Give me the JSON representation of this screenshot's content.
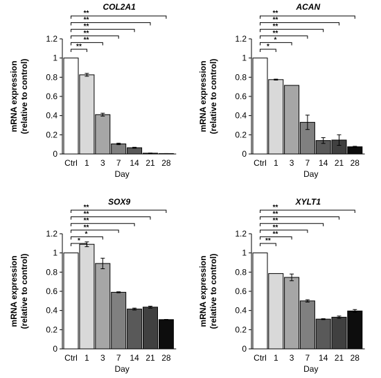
{
  "chart_data": [
    {
      "type": "bar",
      "title": "COL2A1",
      "ylabel": [
        "mRNA expression",
        "(relative to control)"
      ],
      "xlabel": "Day",
      "categories": [
        "Ctrl",
        "1",
        "3",
        "7",
        "14",
        "21",
        "28"
      ],
      "values": [
        1.0,
        0.825,
        0.41,
        0.105,
        0.065,
        0.008,
        0.003
      ],
      "errors": [
        0,
        0.015,
        0.015,
        0.008,
        0.005,
        0.002,
        0.001
      ],
      "yticks": [
        "0",
        "0.2",
        "0.4",
        "0.6",
        "0.8",
        "1",
        "1.2"
      ],
      "ylim": [
        0,
        1.2
      ],
      "significance": [
        {
          "to": "1",
          "label": "**"
        },
        {
          "to": "3",
          "label": "**"
        },
        {
          "to": "7",
          "label": "**"
        },
        {
          "to": "14",
          "label": "**"
        },
        {
          "to": "21",
          "label": "**"
        },
        {
          "to": "28",
          "label": "**"
        }
      ]
    },
    {
      "type": "bar",
      "title": "ACAN",
      "ylabel": [
        "mRNA expression",
        "(relative to control)"
      ],
      "xlabel": "Day",
      "categories": [
        "Ctrl",
        "1",
        "3",
        "7",
        "14",
        "21",
        "28"
      ],
      "values": [
        1.0,
        0.775,
        0.715,
        0.33,
        0.14,
        0.145,
        0.075
      ],
      "errors": [
        0,
        0.005,
        0,
        0.075,
        0.03,
        0.055,
        0.005
      ],
      "yticks": [
        "0",
        "0.2",
        "0.4",
        "0.6",
        "0.8",
        "1",
        "1.2"
      ],
      "ylim": [
        0,
        1.2
      ],
      "significance": [
        {
          "to": "1",
          "label": "*"
        },
        {
          "to": "3",
          "label": "*"
        },
        {
          "to": "7",
          "label": "**"
        },
        {
          "to": "14",
          "label": "**"
        },
        {
          "to": "21",
          "label": "**"
        },
        {
          "to": "28",
          "label": "**"
        }
      ]
    },
    {
      "type": "bar",
      "title": "SOX9",
      "ylabel": [
        "mRNA expression",
        "(relative to control)"
      ],
      "xlabel": "Day",
      "categories": [
        "Ctrl",
        "1",
        "3",
        "7",
        "14",
        "21",
        "28"
      ],
      "values": [
        1.0,
        1.09,
        0.89,
        0.59,
        0.415,
        0.435,
        0.305
      ],
      "errors": [
        0,
        0.025,
        0.055,
        0.005,
        0.01,
        0.01,
        0.002
      ],
      "yticks": [
        "0",
        "0.2",
        "0.4",
        "0.6",
        "0.8",
        "1",
        "1.2"
      ],
      "ylim": [
        0,
        1.2
      ],
      "significance": [
        {
          "to": "1",
          "label": "*"
        },
        {
          "to": "3",
          "label": "*"
        },
        {
          "to": "7",
          "label": "**"
        },
        {
          "to": "14",
          "label": "**"
        },
        {
          "to": "21",
          "label": "**"
        },
        {
          "to": "28",
          "label": "**"
        }
      ]
    },
    {
      "type": "bar",
      "title": "XYLT1",
      "ylabel": [
        "mRNA expression",
        "(relative to control)"
      ],
      "xlabel": "Day",
      "categories": [
        "Ctrl",
        "1",
        "3",
        "7",
        "14",
        "21",
        "28"
      ],
      "values": [
        1.0,
        0.785,
        0.745,
        0.5,
        0.31,
        0.33,
        0.395
      ],
      "errors": [
        0,
        0,
        0.035,
        0.012,
        0.005,
        0.012,
        0.015
      ],
      "yticks": [
        "0",
        "0.2",
        "0.4",
        "0.6",
        "0.8",
        "1",
        "1.2"
      ],
      "ylim": [
        0,
        1.2
      ],
      "significance": [
        {
          "to": "1",
          "label": "**"
        },
        {
          "to": "3",
          "label": "**"
        },
        {
          "to": "7",
          "label": "**"
        },
        {
          "to": "14",
          "label": "**"
        },
        {
          "to": "21",
          "label": "**"
        },
        {
          "to": "28",
          "label": "**"
        }
      ]
    }
  ],
  "bar_colors": [
    "#ffffff",
    "#d9d9d9",
    "#a6a6a6",
    "#808080",
    "#595959",
    "#404040",
    "#0d0d0d"
  ],
  "bar_outline": "#000000"
}
